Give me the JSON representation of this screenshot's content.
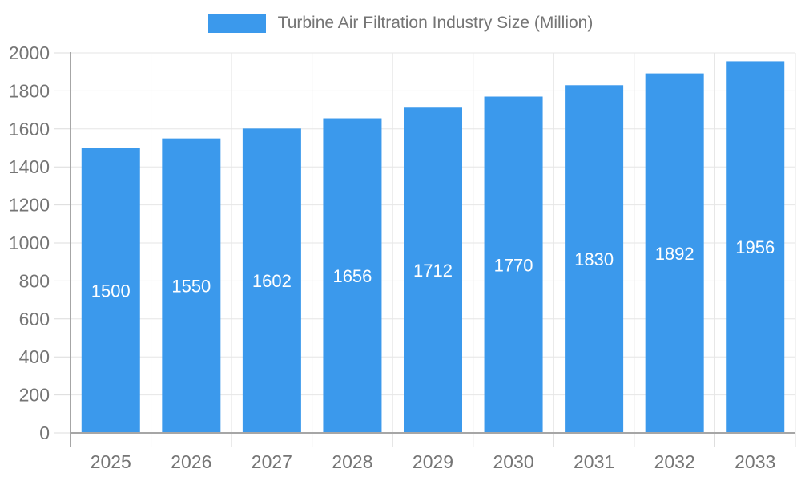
{
  "legend": {
    "label": "Turbine Air Filtration Industry Size (Million)",
    "position": "top-center"
  },
  "chart_data": {
    "type": "bar",
    "title": "Turbine Air Filtration Industry Size (Million)",
    "categories": [
      "2025",
      "2026",
      "2027",
      "2028",
      "2029",
      "2030",
      "2031",
      "2032",
      "2033"
    ],
    "values": [
      1500,
      1550,
      1602,
      1656,
      1712,
      1770,
      1830,
      1892,
      1956
    ],
    "yticks": [
      0,
      200,
      400,
      600,
      800,
      1000,
      1200,
      1400,
      1600,
      1800,
      2000
    ],
    "ylim": [
      0,
      2000
    ],
    "xlabel": "",
    "ylabel": "",
    "grid": true,
    "legend_position": "top-center",
    "value_labels_position": "inside-center",
    "bar_color": "#3B99EC",
    "value_label_color": "#FFFFFF",
    "axis_text_color": "#757575",
    "gridline_color": "#E6E6E6",
    "tick_color": "#DCDCDC",
    "axis_line_color": "#A6A6A6",
    "background_color": "#FFFFFF"
  }
}
